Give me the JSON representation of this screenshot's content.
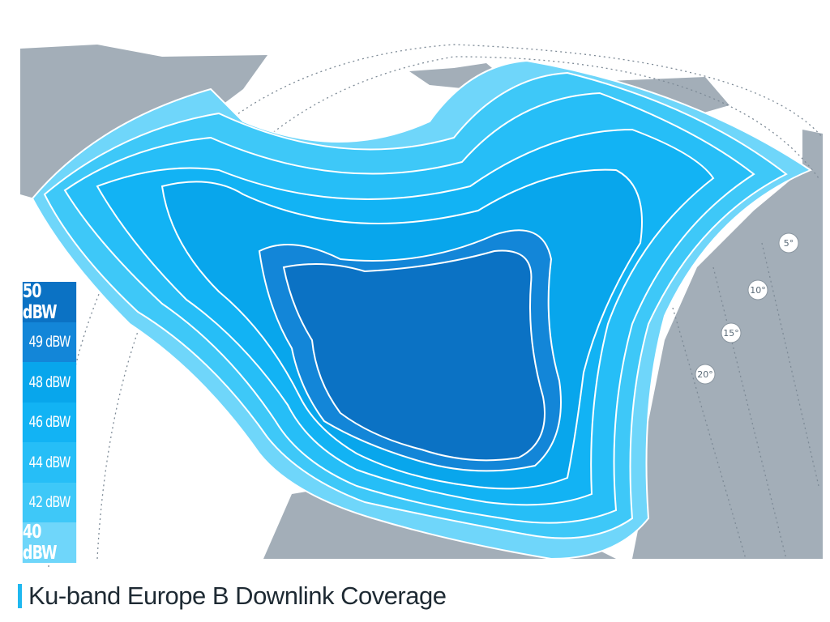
{
  "legend": {
    "items": [
      {
        "label": "50 dBW",
        "color": "#0b72c4"
      },
      {
        "label": "49 dBW",
        "color": "#1386d8"
      },
      {
        "label": "48 dBW",
        "color": "#08a6ec"
      },
      {
        "label": "46 dBW",
        "color": "#12b3f4"
      },
      {
        "label": "44 dBW",
        "color": "#26bef7"
      },
      {
        "label": "42 dBW",
        "color": "#3ec8f8"
      },
      {
        "label": "40 dBW",
        "color": "#6fd6fa"
      }
    ]
  },
  "elevation_labels": [
    "5°",
    "10°",
    "15°",
    "20°"
  ],
  "caption": "Ku-band Europe B Downlink Coverage",
  "colors": {
    "land": "#a3aeb8",
    "accent": "#1fb8f0"
  }
}
